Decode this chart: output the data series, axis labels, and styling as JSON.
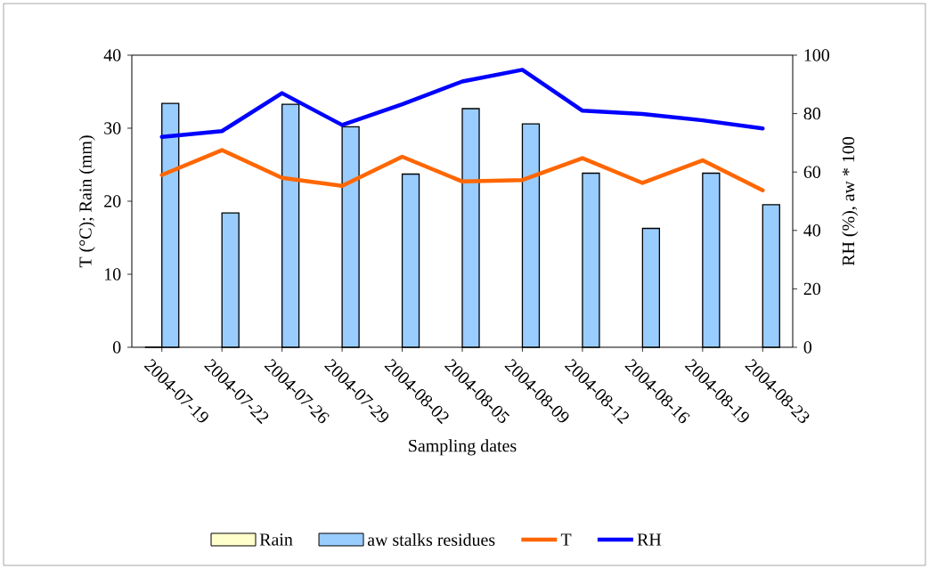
{
  "chart_data": {
    "type": "bar",
    "categories": [
      "2004-07-19",
      "2004-07-22",
      "2004-07-26",
      "2004-07-29",
      "2004-08-02",
      "2004-08-05",
      "2004-08-09",
      "2004-08-12",
      "2004-08-16",
      "2004-08-19",
      "2004-08-23"
    ],
    "series": [
      {
        "name": "Rain",
        "color": "#ffffcc",
        "values": [
          0,
          null,
          null,
          null,
          null,
          null,
          null,
          null,
          null,
          null,
          null
        ]
      },
      {
        "name": "aw stalks residues",
        "axis": "y2",
        "color": "#99ccff",
        "values": [
          83.5,
          46.0,
          83.2,
          75.5,
          59.3,
          81.7,
          76.5,
          59.6,
          40.7,
          59.6,
          48.8
        ]
      },
      {
        "name": "T",
        "type": "line",
        "color": "#ff6600",
        "values": [
          23.6,
          27.0,
          23.2,
          22.1,
          26.1,
          22.7,
          22.9,
          25.9,
          22.5,
          25.6,
          21.5
        ]
      },
      {
        "name": "RH",
        "type": "line",
        "axis": "y2",
        "color": "#0000ff",
        "values": [
          72.0,
          74.0,
          87.0,
          76.1,
          83.2,
          91.0,
          95.0,
          81.0,
          79.9,
          77.7,
          74.9
        ]
      }
    ],
    "xlabel": "Sampling dates",
    "ylabel": "T (°C); Rain (mm)",
    "y2label": "RH (%), aw * 100",
    "ylim": [
      0,
      40
    ],
    "yticks": [
      0,
      10,
      20,
      30,
      40
    ],
    "y2lim": [
      0,
      100
    ],
    "y2ticks": [
      0,
      20,
      40,
      60,
      80,
      100
    ],
    "legend": "bottom"
  }
}
